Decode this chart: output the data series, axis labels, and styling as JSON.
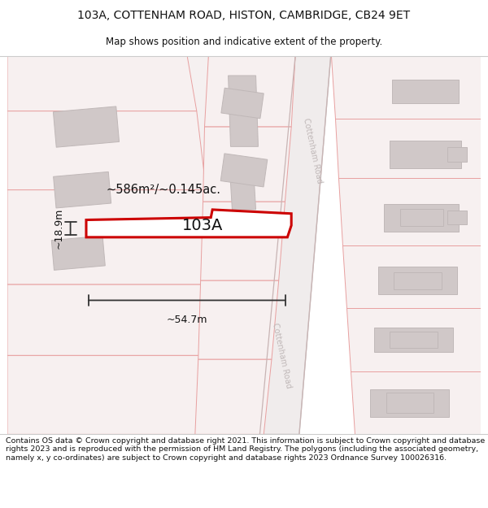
{
  "title_line1": "103A, COTTENHAM ROAD, HISTON, CAMBRIDGE, CB24 9ET",
  "title_line2": "Map shows position and indicative extent of the property.",
  "footer_text": "Contains OS data © Crown copyright and database right 2021. This information is subject to Crown copyright and database rights 2023 and is reproduced with the permission of HM Land Registry. The polygons (including the associated geometry, namely x, y co-ordinates) are subject to Crown copyright and database rights 2023 Ordnance Survey 100026316.",
  "label_area": "~586m²/~0.145ac.",
  "label_width": "~54.7m",
  "label_height": "~18.9m",
  "label_plot": "103A",
  "bg_color": "#ffffff",
  "map_bg": "#faf8f8",
  "road_fill": "#f7f0f0",
  "road_ec": "#e8a0a0",
  "plot_ec": "#e8a0a0",
  "bld_fc": "#d0c8c8",
  "bld_ec": "#c0b8b8",
  "prop_fc": "#ffffff",
  "prop_ec": "#cc0000",
  "road_label_color": "#c0b8b8",
  "dim_color": "#333333",
  "text_color": "#111111"
}
